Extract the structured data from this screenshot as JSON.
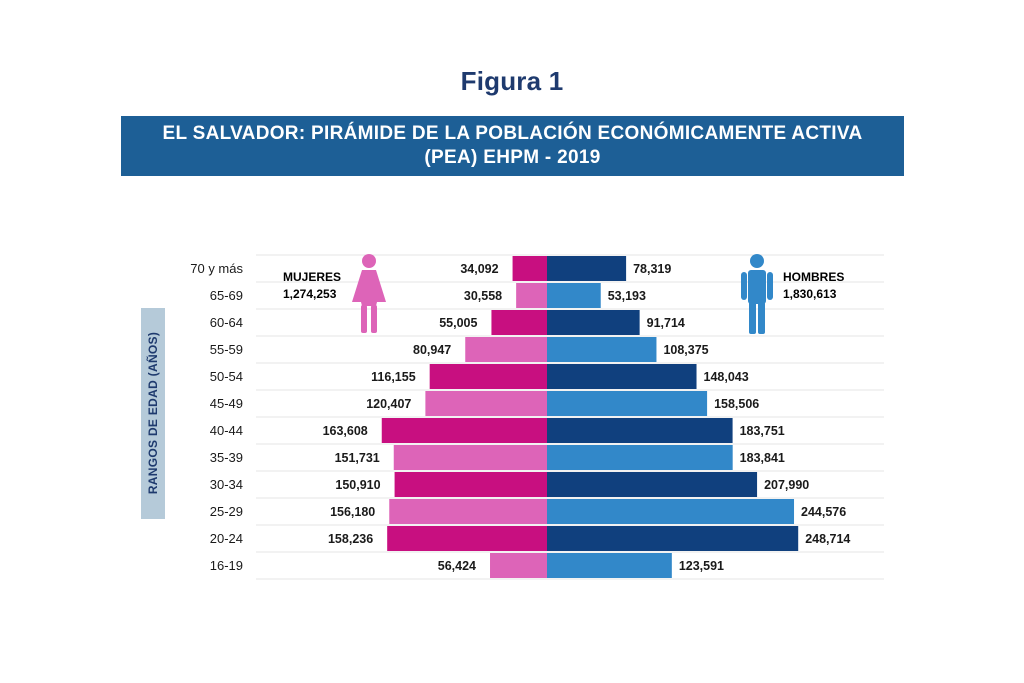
{
  "figure_label": "Figura 1",
  "title_line1": "EL SALVADOR: PIRÁMIDE DE LA POBLACIÓN ECONÓMICAMENTE ACTIVA",
  "title_line2": "(PEA) EHPM - 2019",
  "colors": {
    "banner": "#1d5f96",
    "women_dark": "#c80f80",
    "women_light": "#dd64b8",
    "men_dark": "#10407e",
    "men_light": "#3288c9",
    "axis_box": "#b5cad9",
    "figure_label": "#1e3a6e"
  },
  "legend": {
    "women": {
      "label": "MUJERES",
      "total": "1,274,253",
      "icon": "woman-icon"
    },
    "men": {
      "label": "HOMBRES",
      "total": "1,830,613",
      "icon": "man-icon"
    }
  },
  "chart_data": {
    "type": "bar",
    "orientation": "horizontal-population-pyramid",
    "title": "EL SALVADOR: PIRÁMIDE DE LA POBLACIÓN ECONÓMICAMENTE ACTIVA (PEA) EHPM - 2019",
    "ylabel": "RANGOS DE EDAD (AÑOS)",
    "xlabel": "",
    "categories": [
      "70 y más",
      "65-69",
      "60-64",
      "55-59",
      "50-54",
      "45-49",
      "40-44",
      "35-39",
      "30-34",
      "25-29",
      "20-24",
      "16-19"
    ],
    "series": [
      {
        "name": "MUJERES",
        "side": "left",
        "values": [
          34092,
          30558,
          55005,
          80947,
          116155,
          120407,
          163608,
          151731,
          150910,
          156180,
          158236,
          56424
        ],
        "labels": [
          "34,092",
          "30,558",
          "55,005",
          "80,947",
          "116,155",
          "120,407",
          "163,608",
          "151,731",
          "150,910",
          "156,180",
          "158,236",
          "56,424"
        ]
      },
      {
        "name": "HOMBRES",
        "side": "right",
        "values": [
          78319,
          53193,
          91714,
          108375,
          148043,
          158506,
          183751,
          183841,
          207990,
          244576,
          248714,
          123591
        ],
        "labels": [
          "78,319",
          "53,193",
          "91,714",
          "108,375",
          "148,043",
          "158,506",
          "183,751",
          "183,841",
          "207,990",
          "244,576",
          "248,714",
          "123,591"
        ]
      }
    ],
    "legend": "inside-top",
    "grid": true
  }
}
